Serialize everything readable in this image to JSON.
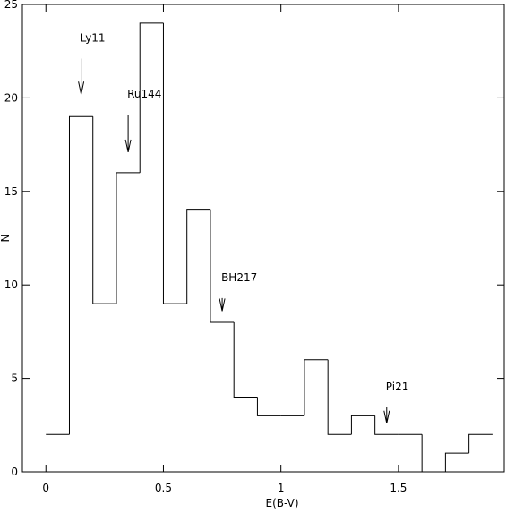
{
  "chart_data": {
    "type": "histogram",
    "x_label": "E(B-V)",
    "y_label": "N",
    "bins": [
      0,
      0.1,
      0.2,
      0.3,
      0.4,
      0.5,
      0.6,
      0.7,
      0.8,
      0.9,
      1.0,
      1.1,
      1.2,
      1.3,
      1.4,
      1.5,
      1.6,
      1.7,
      1.8,
      1.9
    ],
    "counts": [
      2,
      19,
      9,
      16,
      24,
      9,
      14,
      8,
      4,
      3,
      3,
      6,
      2,
      3,
      2,
      2,
      0,
      1,
      2
    ],
    "color": "#000000",
    "xlim": [
      -0.1,
      1.95
    ],
    "ylim": [
      0,
      25
    ],
    "xticks": [
      0,
      0.5,
      1,
      1.5
    ],
    "yticks": [
      0,
      5,
      10,
      15,
      20,
      25
    ],
    "annotations": [
      {
        "text": "Ly11",
        "x": 0.15,
        "y": 20.2,
        "y_tail": 22.1
      },
      {
        "text": "Ru144",
        "x": 0.35,
        "y": 17.1,
        "y_tail": 19.1
      },
      {
        "text": "BH217",
        "x": 0.75,
        "y": 8.6,
        "y_tail": 9.3
      },
      {
        "text": "Pi21",
        "x": 1.45,
        "y": 2.6,
        "y_tail": 3.45
      }
    ]
  }
}
